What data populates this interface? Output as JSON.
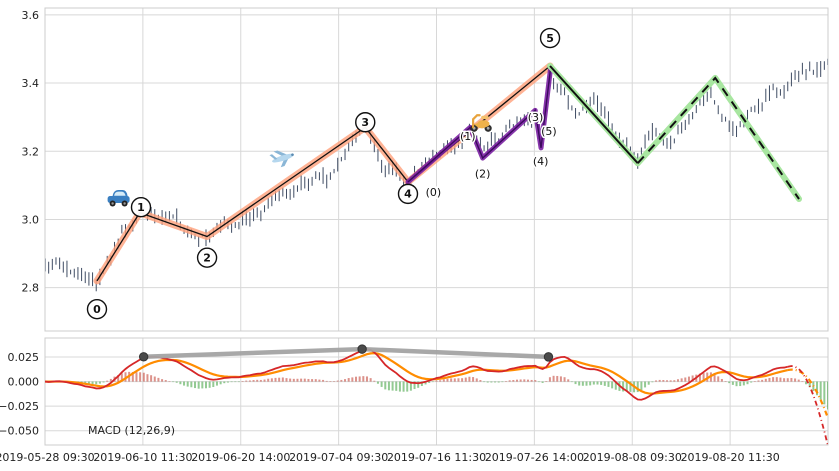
{
  "chart_data": {
    "type": "candlestick+macd",
    "title": "",
    "x_dates": [
      "2019-05-28 09:30",
      "2019-06-10 11:30",
      "2019-06-20 14:00",
      "2019-07-04 09:30",
      "2019-07-16 11:30",
      "2019-07-26 14:00",
      "2019-08-08 09:30",
      "2019-08-20 11:30"
    ],
    "main": {
      "ylim": [
        2.673,
        3.62
      ],
      "yticks": [
        "3.6",
        "3.4",
        "3.2",
        "3.0",
        "2.8"
      ],
      "ytick_values": [
        3.6,
        3.4,
        3.2,
        3.0,
        2.8
      ],
      "price_keypoints": [
        [
          0,
          2.88
        ],
        [
          0.03,
          2.855
        ],
        [
          0.066,
          2.82
        ],
        [
          0.105,
          2.985
        ],
        [
          0.121,
          3.02
        ],
        [
          0.15,
          3.0
        ],
        [
          0.175,
          2.985
        ],
        [
          0.207,
          2.95
        ],
        [
          0.24,
          2.99
        ],
        [
          0.27,
          3.02
        ],
        [
          0.3,
          3.06
        ],
        [
          0.33,
          3.09
        ],
        [
          0.36,
          3.12
        ],
        [
          0.385,
          3.19
        ],
        [
          0.409,
          3.27
        ],
        [
          0.43,
          3.17
        ],
        [
          0.4636,
          3.11
        ],
        [
          0.49,
          3.16
        ],
        [
          0.52,
          3.21
        ],
        [
          0.543,
          3.26
        ],
        [
          0.559,
          3.19
        ],
        [
          0.6,
          3.28
        ],
        [
          0.626,
          3.31
        ],
        [
          0.633,
          3.24
        ],
        [
          0.645,
          3.43
        ],
        [
          0.66,
          3.38
        ],
        [
          0.68,
          3.31
        ],
        [
          0.7,
          3.35
        ],
        [
          0.715,
          3.3
        ],
        [
          0.73,
          3.24
        ],
        [
          0.745,
          3.21
        ],
        [
          0.757,
          3.17
        ],
        [
          0.775,
          3.26
        ],
        [
          0.8,
          3.22
        ],
        [
          0.815,
          3.26
        ],
        [
          0.83,
          3.32
        ],
        [
          0.85,
          3.36
        ],
        [
          0.865,
          3.29
        ],
        [
          0.88,
          3.25
        ],
        [
          0.9,
          3.31
        ],
        [
          0.92,
          3.36
        ],
        [
          0.94,
          3.38
        ],
        [
          0.96,
          3.41
        ],
        [
          0.98,
          3.43
        ],
        [
          1,
          3.45
        ]
      ],
      "wave_points": [
        [
          0.0664,
          2.82
        ],
        [
          0.121,
          3.02
        ],
        [
          0.207,
          2.95
        ],
        [
          0.409,
          3.27
        ],
        [
          0.4636,
          3.11
        ],
        [
          0.645,
          3.45
        ]
      ],
      "wave_labels": [
        {
          "label": "0",
          "x": 0.0664,
          "price": 2.737
        },
        {
          "label": "1",
          "x": 0.1226,
          "price": 3.036
        },
        {
          "label": "2",
          "x": 0.207,
          "price": 2.888
        },
        {
          "label": "3",
          "x": 0.409,
          "price": 3.285
        },
        {
          "label": "4",
          "x": 0.4636,
          "price": 3.075
        },
        {
          "label": "5",
          "x": 0.645,
          "price": 3.532
        }
      ],
      "subwave_points": [
        [
          0.4636,
          3.11
        ],
        [
          0.543,
          3.27
        ],
        [
          0.559,
          3.18
        ],
        [
          0.626,
          3.32
        ],
        [
          0.6335,
          3.21
        ],
        [
          0.6455,
          3.44
        ]
      ],
      "subwave_labels": [
        {
          "label": "(0)",
          "x": 0.496,
          "price": 3.08
        },
        {
          "label": "(1)",
          "x": 0.54,
          "price": 3.245
        },
        {
          "label": "(2)",
          "x": 0.559,
          "price": 3.135
        },
        {
          "label": "(3)",
          "x": 0.6265,
          "price": 3.3
        },
        {
          "label": "(4)",
          "x": 0.633,
          "price": 3.172
        },
        {
          "label": "(5)",
          "x": 0.6435,
          "price": 3.26
        }
      ],
      "projection": {
        "solid": [
          [
            0.645,
            3.45
          ],
          [
            0.757,
            3.165
          ]
        ],
        "dashed": [
          [
            0.757,
            3.165
          ],
          [
            0.856,
            3.415
          ],
          [
            0.963,
            3.06
          ]
        ]
      },
      "icons": [
        {
          "name": "car-icon",
          "x": 0.094,
          "price": 3.06
        },
        {
          "name": "airplane-icon",
          "x": 0.304,
          "price": 3.18
        },
        {
          "name": "scooter-icon",
          "x": 0.557,
          "price": 3.285
        }
      ]
    },
    "macd": {
      "label": "MACD (12,26,9)",
      "params": [
        12,
        26,
        9
      ],
      "ylim": [
        -0.0645,
        0.0443
      ],
      "yticks": [
        "0.025",
        "0.000",
        "−0.025",
        "−0.050"
      ],
      "ytick_values": [
        0.025,
        0,
        -0.025,
        -0.05
      ],
      "connector_x": [
        0.126,
        0.405,
        0.643
      ],
      "peak_value_approx": 0.03
    },
    "bars": {
      "count": 215,
      "seed": 7,
      "noise": 0.05
    },
    "colors": {
      "bar": "#3f4c63",
      "wave": "#ffa07a",
      "wave_core": "#111111",
      "purple": "#7a1fa2",
      "purple_core": "#3c0a5e",
      "projection_underlay": "#a8e6a0",
      "projection": "#111111",
      "macd_line": "#d62728",
      "signal_line": "#ff8c00",
      "hist_pos": "#c0392b",
      "hist_neg": "#3a9e3a",
      "connector": "#a3a3a3",
      "dot": "#4a4a4a",
      "grid": "#d8d8d8",
      "border": "#cccccc",
      "axis_text": "#222222"
    }
  }
}
